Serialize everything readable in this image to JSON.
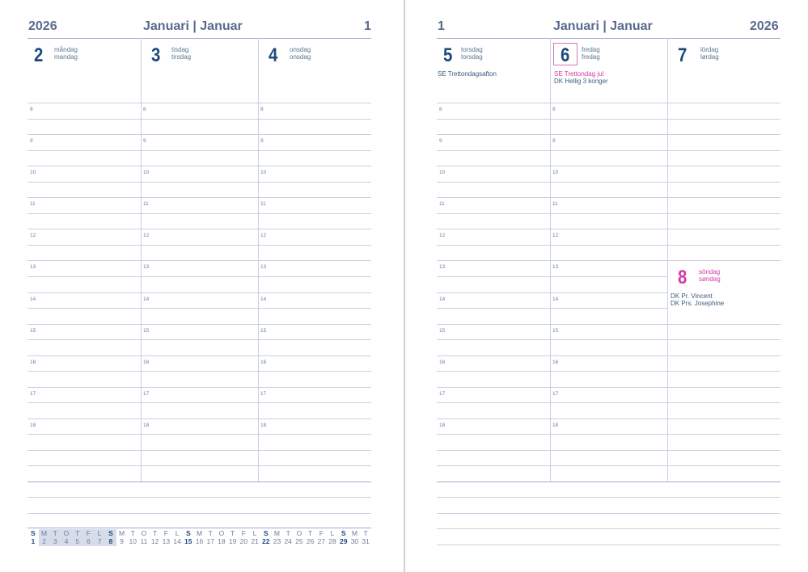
{
  "left_page": {
    "year": "2026",
    "month_title": "Januari | Januar",
    "week": "1",
    "days": [
      {
        "num": "2",
        "name_se": "måndag",
        "name_dk": "mandag"
      },
      {
        "num": "3",
        "name_se": "tisdag",
        "name_dk": "tirsdag"
      },
      {
        "num": "4",
        "name_se": "onsdag",
        "name_dk": "onsdag"
      }
    ],
    "hours": [
      "8",
      "9",
      "10",
      "11",
      "12",
      "13",
      "14",
      "15",
      "16",
      "17",
      "18"
    ],
    "mini_calendar": {
      "letters": [
        "S",
        "M",
        "T",
        "O",
        "T",
        "F",
        "L",
        "S",
        "M",
        "T",
        "O",
        "T",
        "F",
        "L",
        "S",
        "M",
        "T",
        "O",
        "T",
        "F",
        "L",
        "S",
        "M",
        "T",
        "O",
        "T",
        "F",
        "L",
        "S",
        "M",
        "T"
      ],
      "dates": [
        "1",
        "2",
        "3",
        "4",
        "5",
        "6",
        "7",
        "8",
        "9",
        "10",
        "11",
        "12",
        "13",
        "14",
        "15",
        "16",
        "17",
        "18",
        "19",
        "20",
        "21",
        "22",
        "23",
        "24",
        "25",
        "26",
        "27",
        "28",
        "29",
        "30",
        "31"
      ],
      "highlight_week": [
        2,
        8
      ],
      "highlight_color": "#d6dcea"
    }
  },
  "right_page": {
    "week": "1",
    "month_title": "Januari | Januar",
    "year": "2026",
    "days": [
      {
        "num": "5",
        "name_se": "torsdag",
        "name_dk": "torsdag",
        "notes": [
          "SE Trettondagsafton"
        ]
      },
      {
        "num": "6",
        "name_se": "fredag",
        "name_dk": "fredag",
        "holiday_se": "SE Trettondag jul",
        "notes": [
          "DK Hellig 3 konger"
        ]
      },
      {
        "num": "7",
        "name_se": "lördag",
        "name_dk": "lørdag"
      },
      {
        "num": "8",
        "name_se": "söndag",
        "name_dk": "søndag",
        "notes": [
          "DK Pr. Vincent",
          "DK Prs. Josephine"
        ]
      }
    ],
    "hours": [
      "8",
      "9",
      "10",
      "11",
      "12",
      "13",
      "14",
      "15",
      "16",
      "17",
      "18"
    ]
  },
  "colors": {
    "heading": "#5a6a8e",
    "day_number": "#1d4a7a",
    "holiday": "#d63aa9",
    "rule": "#c9cfe2"
  }
}
